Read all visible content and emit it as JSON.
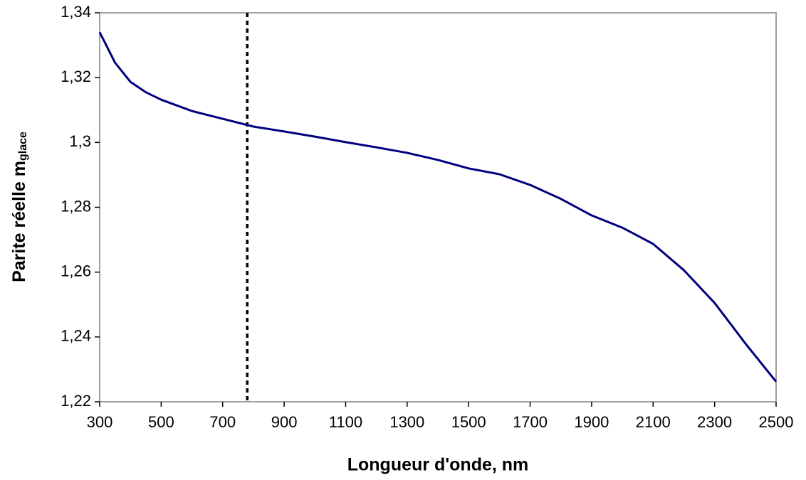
{
  "chart_data": {
    "type": "line",
    "xlabel": "Longueur d'onde, nm",
    "ylabel": "Parite réelle m",
    "ylabel_sub": "glace",
    "x": [
      300,
      350,
      400,
      450,
      500,
      600,
      700,
      800,
      900,
      1000,
      1100,
      1200,
      1300,
      1400,
      1500,
      1600,
      1700,
      1800,
      1900,
      2000,
      2100,
      2200,
      2300,
      2400,
      2500
    ],
    "series": [
      {
        "name": "m",
        "color": "#000080",
        "values": [
          1.334,
          1.3246,
          1.3187,
          1.3155,
          1.3132,
          1.3097,
          1.3073,
          1.3049,
          1.3034,
          1.3018,
          1.3001,
          1.2985,
          1.2968,
          1.2946,
          1.292,
          1.2902,
          1.2869,
          1.2826,
          1.2775,
          1.2737,
          1.2687,
          1.2606,
          1.2505,
          1.238,
          1.2262
        ]
      }
    ],
    "vline": 780,
    "xlim": [
      300,
      2500
    ],
    "xticks": [
      300,
      500,
      700,
      900,
      1100,
      1300,
      1500,
      1700,
      1900,
      2100,
      2300,
      2500
    ],
    "ylim": [
      1.22,
      1.34
    ],
    "yticks": [
      {
        "value": 1.22,
        "label": "1,22"
      },
      {
        "value": 1.24,
        "label": "1,24"
      },
      {
        "value": 1.26,
        "label": "1,26"
      },
      {
        "value": 1.28,
        "label": "1,28"
      },
      {
        "value": 1.3,
        "label": "1,3"
      },
      {
        "value": 1.32,
        "label": "1,32"
      },
      {
        "value": 1.34,
        "label": "1,34"
      }
    ],
    "grid": false
  }
}
